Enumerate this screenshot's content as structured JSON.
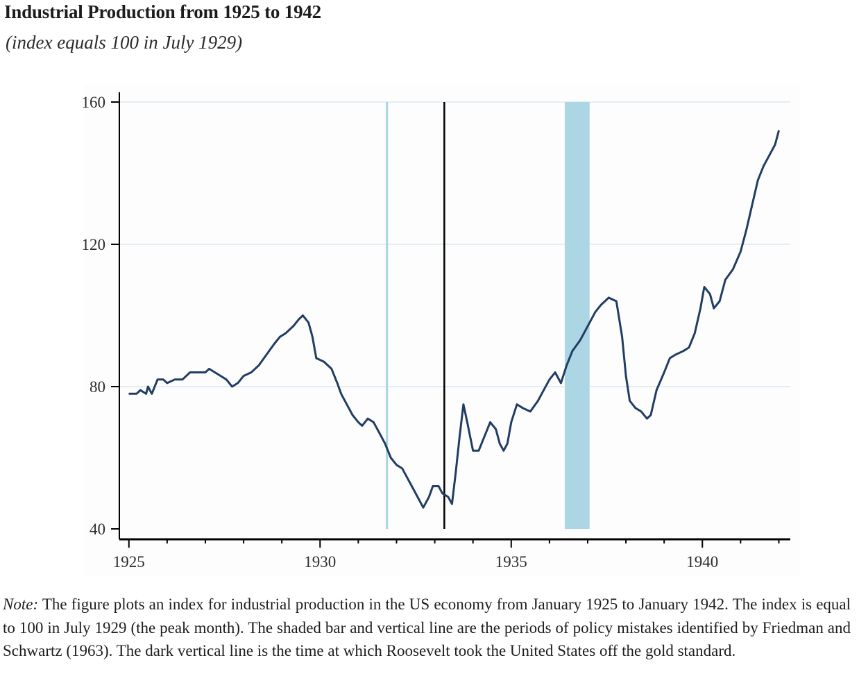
{
  "title": "Industrial Production from 1925 to 1942",
  "subtitle": "(index equals 100 in July 1929)",
  "note": {
    "label": "Note:",
    "text": "The figure plots an index for industrial production in the US economy from January 1925 to January 1942. The index is equal to 100 in July 1929 (the peak month). The shaded bar and vertical line are the periods of policy mistakes identified by Friedman and Schwartz (1963). The dark vertical line is the time at which Roosevelt took the United States off the gold standard."
  },
  "chart_data": {
    "type": "line",
    "title": "Industrial Production from 1925 to 1942",
    "subtitle": "(index equals 100 in July 1929)",
    "xlabel": "",
    "ylabel": "",
    "xlim": [
      1924.75,
      1942.3
    ],
    "ylim": [
      40,
      160
    ],
    "x_ticks": [
      1925,
      1930,
      1935,
      1940
    ],
    "y_ticks": [
      40,
      80,
      120,
      160
    ],
    "grid": "horizontal",
    "colors": {
      "line": "#213d63",
      "policy_mark": "#a9d4e3",
      "policy_band": "#add6e5",
      "gold_line": "#000000",
      "gridline": "#e2eef4",
      "axis": "#000000"
    },
    "series": [
      {
        "points": [
          [
            1925.0,
            78
          ],
          [
            1925.2,
            78
          ],
          [
            1925.3,
            79
          ],
          [
            1925.45,
            78
          ],
          [
            1925.5,
            80
          ],
          [
            1925.6,
            78
          ],
          [
            1925.75,
            82
          ],
          [
            1925.9,
            82
          ],
          [
            1926.0,
            81
          ],
          [
            1926.2,
            82
          ],
          [
            1926.4,
            82
          ],
          [
            1926.6,
            84
          ],
          [
            1926.8,
            84
          ],
          [
            1927.0,
            84
          ],
          [
            1927.1,
            85
          ],
          [
            1927.25,
            84
          ],
          [
            1927.4,
            83
          ],
          [
            1927.55,
            82
          ],
          [
            1927.7,
            80
          ],
          [
            1927.85,
            81
          ],
          [
            1928.0,
            83
          ],
          [
            1928.2,
            84
          ],
          [
            1928.4,
            86
          ],
          [
            1928.6,
            89
          ],
          [
            1928.8,
            92
          ],
          [
            1928.95,
            94
          ],
          [
            1929.1,
            95
          ],
          [
            1929.3,
            97
          ],
          [
            1929.45,
            99
          ],
          [
            1929.55,
            100
          ],
          [
            1929.7,
            98
          ],
          [
            1929.8,
            94
          ],
          [
            1929.9,
            88
          ],
          [
            1930.1,
            87
          ],
          [
            1930.3,
            85
          ],
          [
            1930.45,
            81
          ],
          [
            1930.55,
            78
          ],
          [
            1930.7,
            75
          ],
          [
            1930.85,
            72
          ],
          [
            1931.0,
            70
          ],
          [
            1931.1,
            69
          ],
          [
            1931.25,
            71
          ],
          [
            1931.4,
            70
          ],
          [
            1931.55,
            67
          ],
          [
            1931.7,
            64
          ],
          [
            1931.85,
            60
          ],
          [
            1932.0,
            58
          ],
          [
            1932.15,
            57
          ],
          [
            1932.3,
            54
          ],
          [
            1932.45,
            51
          ],
          [
            1932.6,
            48
          ],
          [
            1932.7,
            46
          ],
          [
            1932.85,
            49
          ],
          [
            1932.95,
            52
          ],
          [
            1933.1,
            52
          ],
          [
            1933.2,
            50
          ],
          [
            1933.35,
            49
          ],
          [
            1933.45,
            47
          ],
          [
            1933.55,
            56
          ],
          [
            1933.65,
            66
          ],
          [
            1933.75,
            75
          ],
          [
            1933.85,
            70
          ],
          [
            1934.0,
            62
          ],
          [
            1934.15,
            62
          ],
          [
            1934.3,
            66
          ],
          [
            1934.45,
            70
          ],
          [
            1934.6,
            68
          ],
          [
            1934.7,
            64
          ],
          [
            1934.8,
            62
          ],
          [
            1934.9,
            64
          ],
          [
            1935.0,
            70
          ],
          [
            1935.15,
            75
          ],
          [
            1935.3,
            74
          ],
          [
            1935.5,
            73
          ],
          [
            1935.7,
            76
          ],
          [
            1935.85,
            79
          ],
          [
            1936.0,
            82
          ],
          [
            1936.15,
            84
          ],
          [
            1936.3,
            81
          ],
          [
            1936.45,
            86
          ],
          [
            1936.6,
            90
          ],
          [
            1936.8,
            93
          ],
          [
            1937.0,
            97
          ],
          [
            1937.2,
            101
          ],
          [
            1937.35,
            103
          ],
          [
            1937.55,
            105
          ],
          [
            1937.75,
            104
          ],
          [
            1937.9,
            94
          ],
          [
            1938.0,
            83
          ],
          [
            1938.1,
            76
          ],
          [
            1938.25,
            74
          ],
          [
            1938.4,
            73
          ],
          [
            1938.55,
            71
          ],
          [
            1938.65,
            72
          ],
          [
            1938.8,
            79
          ],
          [
            1939.0,
            84
          ],
          [
            1939.15,
            88
          ],
          [
            1939.3,
            89
          ],
          [
            1939.5,
            90
          ],
          [
            1939.65,
            91
          ],
          [
            1939.8,
            95
          ],
          [
            1939.95,
            102
          ],
          [
            1940.05,
            108
          ],
          [
            1940.2,
            106
          ],
          [
            1940.3,
            102
          ],
          [
            1940.45,
            104
          ],
          [
            1940.6,
            110
          ],
          [
            1940.8,
            113
          ],
          [
            1941.0,
            118
          ],
          [
            1941.15,
            124
          ],
          [
            1941.3,
            131
          ],
          [
            1941.45,
            138
          ],
          [
            1941.6,
            142
          ],
          [
            1941.75,
            145
          ],
          [
            1941.9,
            148
          ],
          [
            1942.0,
            152
          ]
        ]
      }
    ],
    "annotations": [
      {
        "kind": "vertical_line",
        "x": 1931.75,
        "color": "#a9d4e3",
        "meaning": "policy mistake"
      },
      {
        "kind": "shaded_band",
        "x_start": 1936.4,
        "x_end": 1937.05,
        "color": "#add6e5",
        "meaning": "policy mistake"
      },
      {
        "kind": "vertical_line",
        "x": 1933.25,
        "color": "#000000",
        "meaning": "off the gold standard"
      }
    ]
  }
}
